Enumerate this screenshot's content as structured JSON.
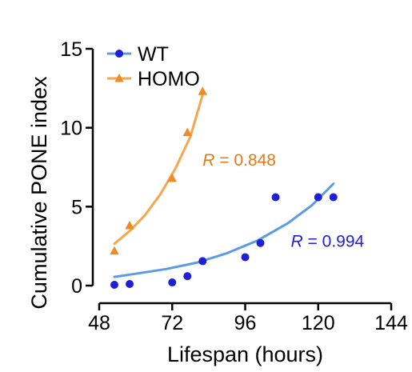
{
  "chart_data": {
    "type": "scatter",
    "xlabel": "Lifespan (hours)",
    "ylabel": "Cumulative PONE index",
    "xlim": [
      48,
      144
    ],
    "ylim": [
      0,
      15
    ],
    "xticks": [
      48,
      72,
      96,
      120,
      144
    ],
    "yticks": [
      0,
      5,
      10,
      15
    ],
    "grid": false,
    "legend_position": "top-left",
    "series": [
      {
        "name": "WT",
        "color": "#1f1fd6",
        "fit_color": "#5b9be6",
        "marker": "circle",
        "points": [
          [
            53,
            0.05
          ],
          [
            58,
            0.1
          ],
          [
            72,
            0.2
          ],
          [
            77,
            0.6
          ],
          [
            82,
            1.55
          ],
          [
            96,
            1.8
          ],
          [
            101,
            2.7
          ],
          [
            106,
            5.6
          ],
          [
            120,
            5.6
          ],
          [
            125,
            5.6
          ]
        ],
        "fit": [
          [
            53,
            0.55
          ],
          [
            60,
            0.75
          ],
          [
            70,
            1.05
          ],
          [
            80,
            1.45
          ],
          [
            90,
            2.05
          ],
          [
            100,
            2.85
          ],
          [
            110,
            3.95
          ],
          [
            118,
            5.1
          ],
          [
            125,
            6.45
          ]
        ],
        "r_label": "R = 0.994",
        "r_pos": [
          111,
          2.45
        ]
      },
      {
        "name": "HOMO",
        "color": "#f08a24",
        "fit_color": "#f5a64e",
        "marker": "triangle",
        "points": [
          [
            53,
            2.2
          ],
          [
            58,
            3.8
          ],
          [
            72,
            6.8
          ],
          [
            77,
            9.7
          ],
          [
            82,
            12.3
          ]
        ],
        "fit": [
          [
            53,
            2.65
          ],
          [
            58,
            3.45
          ],
          [
            63,
            4.45
          ],
          [
            68,
            5.75
          ],
          [
            73,
            7.4
          ],
          [
            78,
            9.45
          ],
          [
            82,
            12.1
          ]
        ],
        "r_label": "R = 0.848",
        "r_pos": [
          82,
          7.6
        ]
      }
    ]
  }
}
